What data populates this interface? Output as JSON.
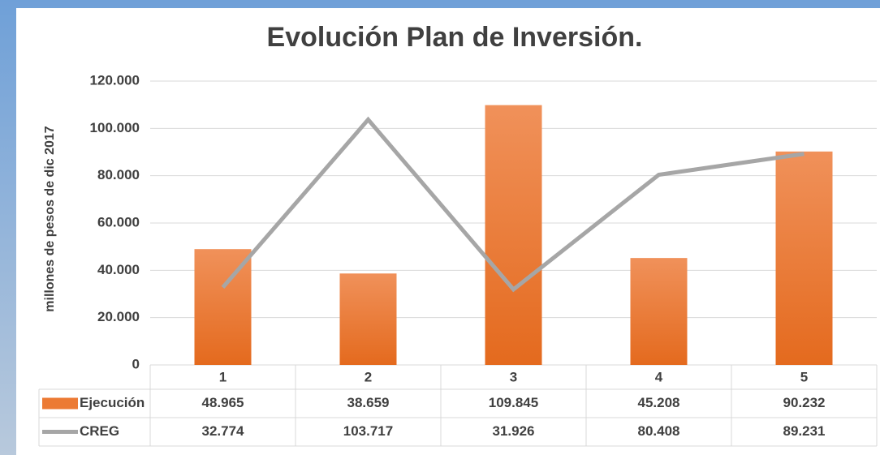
{
  "chart_data": {
    "type": "bar-line-table",
    "title": "Evolución Plan de Inversión.",
    "y_label": "millones de pesos de dic  2017",
    "categories": [
      "1",
      "2",
      "3",
      "4",
      "5"
    ],
    "series": [
      {
        "name": "Ejecución",
        "type": "bar",
        "color": "#ec7a34",
        "values": [
          48965,
          38659,
          109845,
          45208,
          90232
        ],
        "value_labels": [
          "48.965",
          "38.659",
          "109.845",
          "45.208",
          "90.232"
        ]
      },
      {
        "name": "CREG",
        "type": "line",
        "color": "#a6a6a6",
        "values": [
          32774,
          103717,
          31926,
          80408,
          89231
        ],
        "value_labels": [
          "32.774",
          "103.717",
          "31.926",
          "80.408",
          "89.231"
        ]
      }
    ],
    "ylim": [
      0,
      120000
    ],
    "yticks": [
      0,
      {
        "value": 20000,
        "label": "20.000"
      },
      {
        "value": 40000,
        "label": "40.000"
      },
      {
        "value": 60000,
        "label": "60.000"
      },
      {
        "value": 80000,
        "label": "80.000"
      },
      {
        "value": 100000,
        "label": "100.000"
      },
      {
        "value": 120000,
        "label": "120.000"
      }
    ],
    "grid": true
  }
}
